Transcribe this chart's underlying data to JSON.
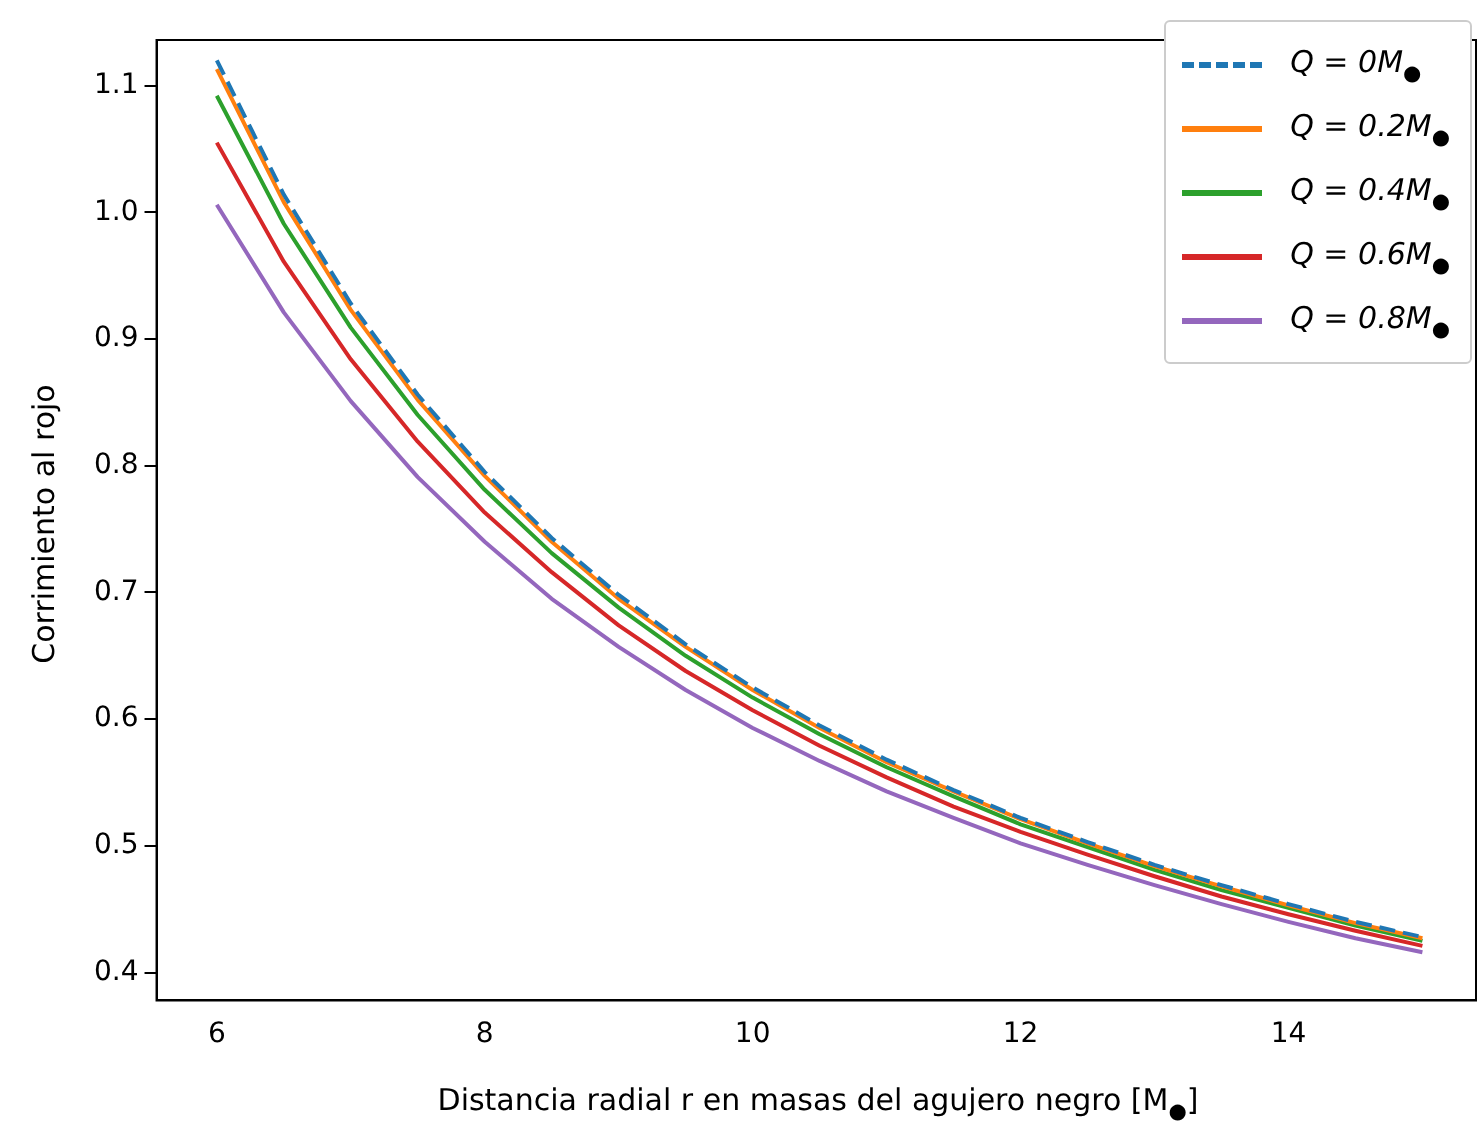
{
  "chart_data": {
    "type": "line",
    "xlabel": "Distancia radial r en masas del agujero negro [M$_{●}$]",
    "ylabel": "Corrimiento al rojo",
    "x": [
      6,
      6.5,
      7,
      7.5,
      8,
      8.5,
      9,
      9.5,
      10,
      10.5,
      11,
      11.5,
      12,
      12.5,
      13,
      13.5,
      14,
      14.5,
      15
    ],
    "xlim": [
      5.55,
      15.4
    ],
    "xticks": [
      6,
      8,
      10,
      12,
      14
    ],
    "ylim": [
      0.378,
      1.136
    ],
    "yticks": [
      0.4,
      0.5,
      0.6,
      0.7,
      0.8,
      0.9,
      {
        "value": 1,
        "label": "1.0"
      },
      1.1
    ],
    "legend": "top right",
    "marker": "none",
    "series": [
      {
        "name": "Q = 0M$_{●}$",
        "color": "#1f77b4",
        "line_style": "dashed",
        "values": [
          1.12,
          1.014,
          0.928,
          0.856,
          0.795,
          0.743,
          0.698,
          0.659,
          0.625,
          0.595,
          0.568,
          0.544,
          0.522,
          0.503,
          0.485,
          0.469,
          0.454,
          0.44,
          0.428
        ]
      },
      {
        "name": "Q = 0.2M$_{●}$",
        "color": "#ff7f0e",
        "line_style": "solid",
        "values": [
          1.113,
          1.008,
          0.923,
          0.852,
          0.792,
          0.74,
          0.695,
          0.657,
          0.623,
          0.593,
          0.566,
          0.543,
          0.521,
          0.502,
          0.484,
          0.468,
          0.453,
          0.439,
          0.427
        ]
      },
      {
        "name": "Q = 0.4M$_{●}$",
        "color": "#2ca02c",
        "line_style": "solid",
        "values": [
          1.092,
          0.991,
          0.909,
          0.84,
          0.781,
          0.731,
          0.688,
          0.65,
          0.617,
          0.588,
          0.562,
          0.539,
          0.517,
          0.499,
          0.481,
          0.465,
          0.451,
          0.437,
          0.425
        ]
      },
      {
        "name": "Q = 0.6M$_{●}$",
        "color": "#d62728",
        "line_style": "solid",
        "values": [
          1.055,
          0.961,
          0.884,
          0.819,
          0.763,
          0.716,
          0.674,
          0.638,
          0.607,
          0.579,
          0.554,
          0.531,
          0.511,
          0.493,
          0.476,
          0.46,
          0.446,
          0.433,
          0.421
        ]
      },
      {
        "name": "Q = 0.8M$_{●}$",
        "color": "#9467bd",
        "line_style": "solid",
        "values": [
          1.006,
          0.921,
          0.851,
          0.791,
          0.74,
          0.695,
          0.657,
          0.623,
          0.593,
          0.567,
          0.543,
          0.522,
          0.502,
          0.485,
          0.469,
          0.454,
          0.44,
          0.427,
          0.416
        ]
      }
    ]
  }
}
